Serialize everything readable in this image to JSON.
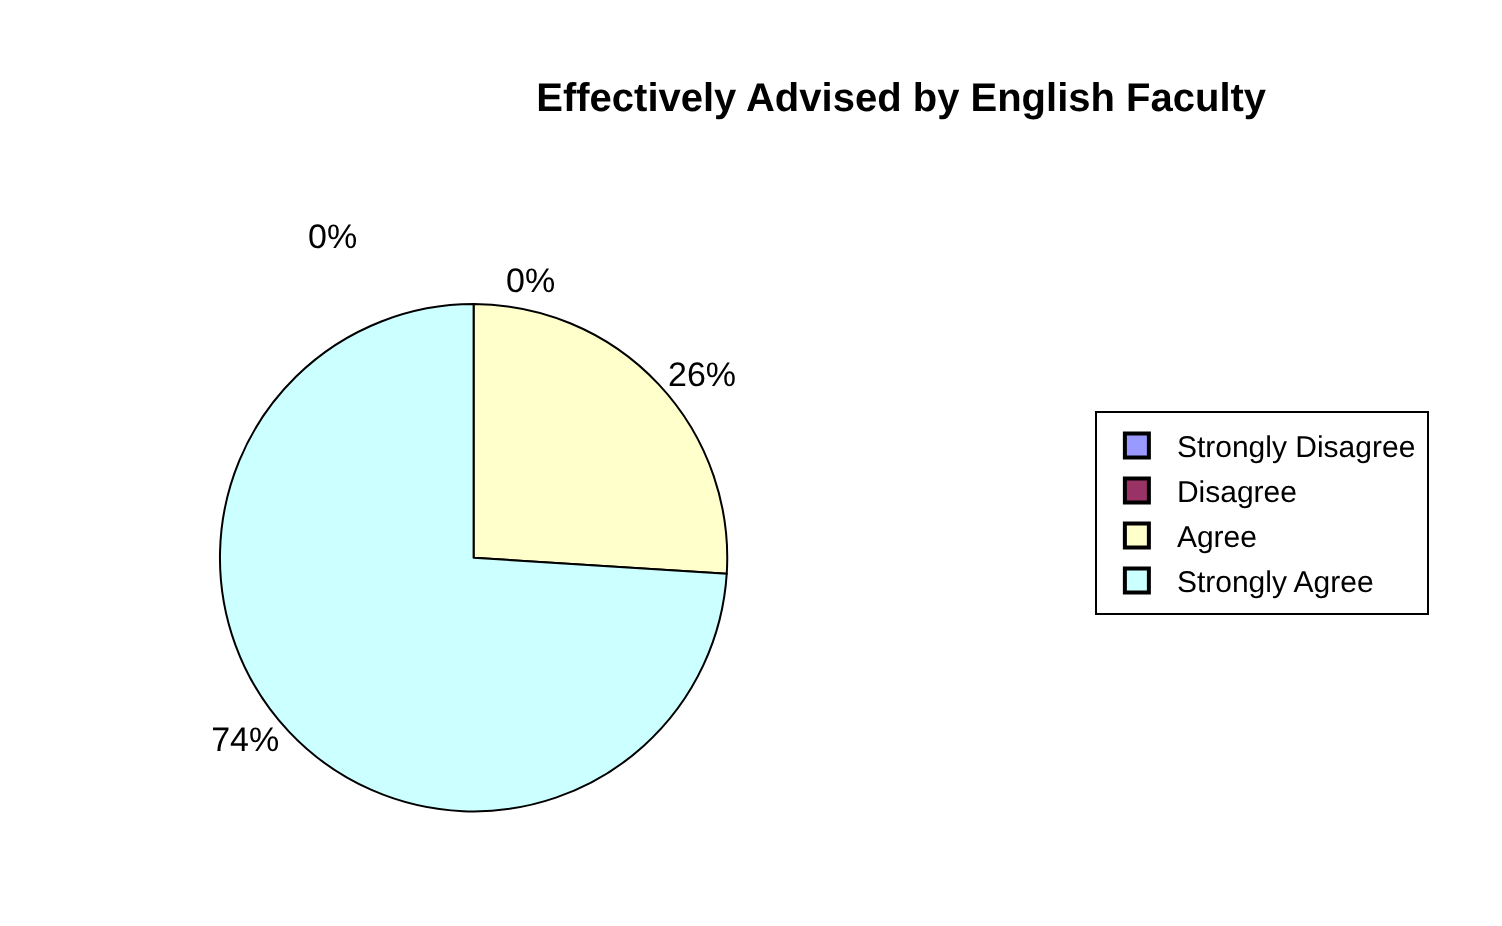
{
  "chart_data": {
    "type": "pie",
    "title": "Effectively Advised by English Faculty",
    "categories": [
      "Strongly Disagree",
      "Disagree",
      "Agree",
      "Strongly Agree"
    ],
    "values": [
      0,
      0,
      26,
      74
    ],
    "colors": [
      "#9999ff",
      "#993366",
      "#ffffcc",
      "#ccffff"
    ],
    "value_labels": [
      "0%",
      "0%",
      "26%",
      "74%"
    ],
    "legend": "right"
  }
}
